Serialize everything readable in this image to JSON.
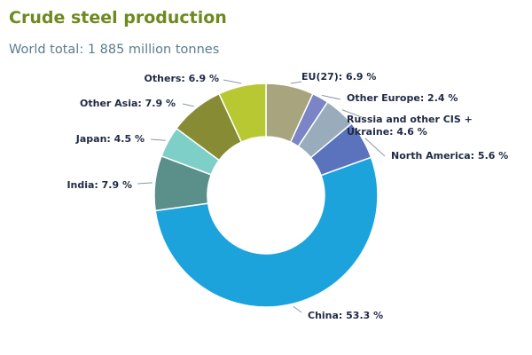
{
  "colors": {
    "title": "#6e8a1f",
    "subtitle": "#5a7d8c",
    "label": "#1f2a44",
    "leader": "#8a9aa6"
  },
  "chart_data": {
    "type": "pie",
    "donut": true,
    "title": "Crude steel production",
    "subtitle": "World total: 1 885 million tonnes",
    "unit": "%",
    "slices": [
      {
        "label": "EU(27): 6.9 %",
        "value": 6.9,
        "color": "#a8a47e"
      },
      {
        "label": "Other Europe: 2.4 %",
        "value": 2.4,
        "color": "#7b84c4"
      },
      {
        "label": "Russia and other CIS + Ukraine: 4.6 %",
        "value": 4.6,
        "color": "#98acbc"
      },
      {
        "label": "North America: 5.6 %",
        "value": 5.6,
        "color": "#5b73bc"
      },
      {
        "label": "China: 53.3 %",
        "value": 53.3,
        "color": "#1ca3dc"
      },
      {
        "label": "India: 7.9 %",
        "value": 7.9,
        "color": "#5b8f8a"
      },
      {
        "label": "Japan: 4.5 %",
        "value": 4.5,
        "color": "#7dcfc7"
      },
      {
        "label": "Other Asia: 7.9 %",
        "value": 7.9,
        "color": "#868b34"
      },
      {
        "label": "Others: 6.9 %",
        "value": 6.9,
        "color": "#b7c832"
      }
    ]
  }
}
